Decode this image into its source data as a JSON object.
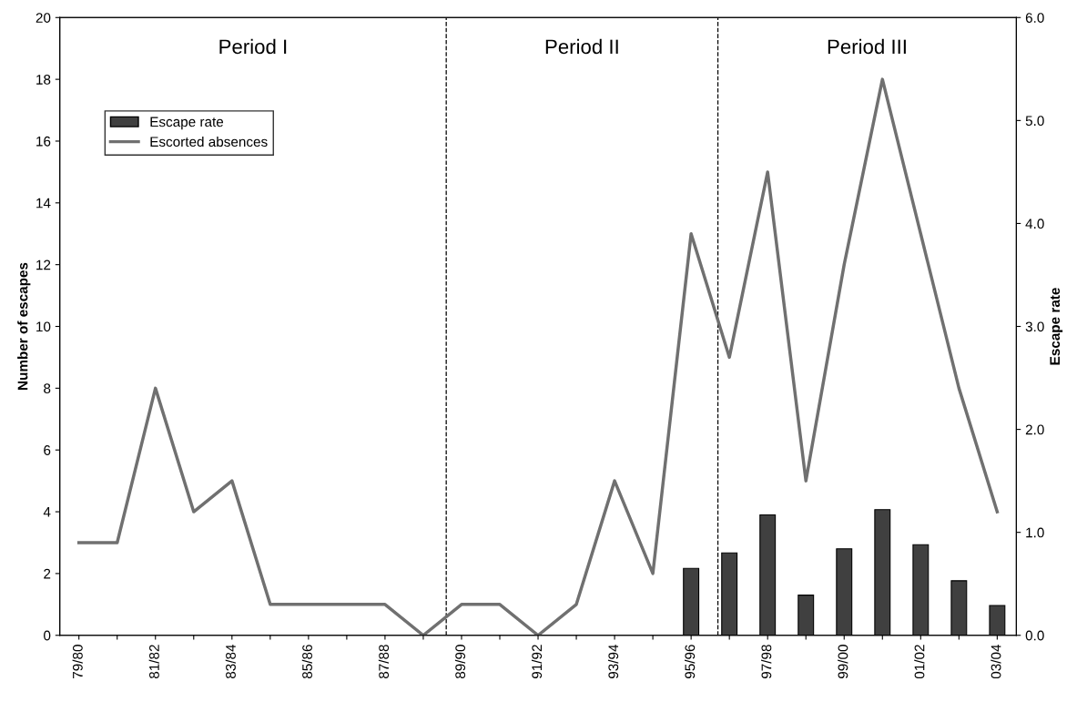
{
  "chart_data": {
    "type": "bar",
    "categories": [
      "79/80",
      null,
      "81/82",
      null,
      "83/84",
      null,
      "85/86",
      null,
      "87/88",
      null,
      "89/90",
      null,
      "91/92",
      null,
      "93/94",
      null,
      "95/96",
      null,
      "97/98",
      null,
      "99/00",
      null,
      "01/02",
      null,
      "03/04"
    ],
    "series": [
      {
        "name": "Escape rate",
        "axis": "y2",
        "color": "#404040",
        "values": [
          null,
          null,
          null,
          null,
          null,
          null,
          null,
          null,
          null,
          null,
          null,
          null,
          null,
          null,
          null,
          null,
          0.65,
          0.8,
          1.17,
          0.39,
          0.84,
          1.22,
          0.88,
          0.53,
          0.29
        ]
      },
      {
        "name": "Escorted absences",
        "type": "line",
        "color": "#707070",
        "values": [
          3,
          3,
          8,
          4,
          5,
          1,
          1,
          1,
          1,
          0,
          1,
          1,
          0,
          1,
          5,
          2,
          13,
          9,
          15,
          5,
          12,
          18,
          13,
          8,
          4
        ]
      }
    ],
    "ylabel": "Number of escapes",
    "y2label": "Escape rate",
    "ylim": [
      0,
      20
    ],
    "yticks": [
      0,
      2,
      4,
      6,
      8,
      10,
      12,
      14,
      16,
      18,
      20
    ],
    "y2lim": [
      0,
      6
    ],
    "y2ticks": [
      {
        "value": 0,
        "label": "0.0"
      },
      {
        "value": 1,
        "label": "1.0"
      },
      {
        "value": 2,
        "label": "2.0"
      },
      {
        "value": 3,
        "label": "3.0"
      },
      {
        "value": 4,
        "label": "4.0"
      },
      {
        "value": 5,
        "label": "5.0"
      },
      {
        "value": 6,
        "label": "6.0"
      }
    ],
    "annotations": [
      "Period I",
      "Period II",
      "Period III"
    ],
    "legend": "top left",
    "grid": false,
    "marker": "none",
    "line_style": "solid"
  }
}
